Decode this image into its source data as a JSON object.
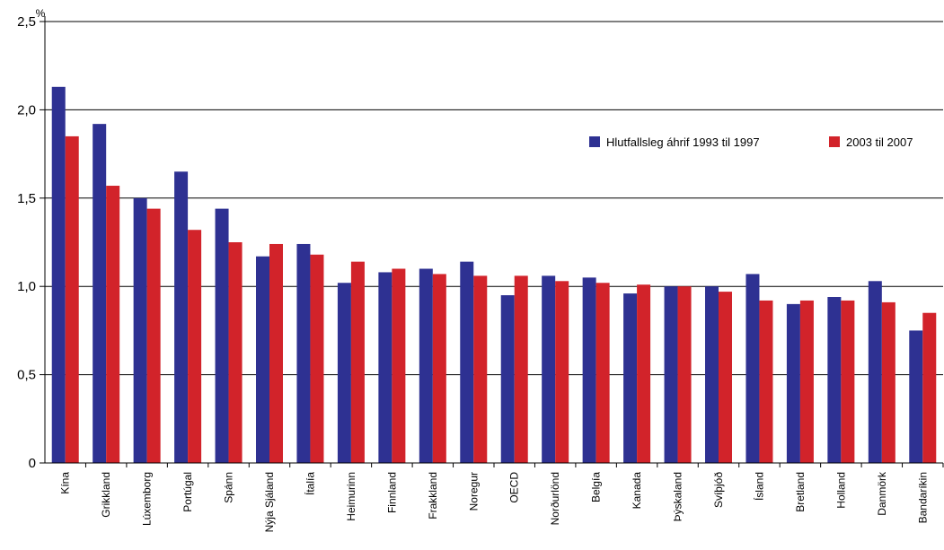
{
  "chart_data": {
    "type": "bar",
    "unit_label": "%",
    "ylim": [
      0,
      2.5
    ],
    "yticks": [
      "0",
      "0,5",
      "1,0",
      "1,5",
      "2,0",
      "2,5"
    ],
    "grid": true,
    "legend_position": "top-right",
    "categories": [
      "Kína",
      "Grikkland",
      "Lúxemborg",
      "Portúgal",
      "Spánn",
      "Nýja Sjáland",
      "Ítalía",
      "Heimurinn",
      "Finnland",
      "Frakkland",
      "Noregur",
      "OECD",
      "Norðurlönd",
      "Belgía",
      "Kanada",
      "Þýskaland",
      "Svíþjóð",
      "Ísland",
      "Bretland",
      "Holland",
      "Danmörk",
      "Bandaríkin"
    ],
    "series": [
      {
        "name": "Hlutfallsleg áhrif 1993 til 1997",
        "color": "#2e3192",
        "values": [
          2.13,
          1.92,
          1.5,
          1.65,
          1.44,
          1.17,
          1.24,
          1.02,
          1.08,
          1.1,
          1.14,
          0.95,
          1.06,
          1.05,
          0.96,
          1.0,
          1.0,
          1.07,
          0.9,
          0.94,
          1.03,
          0.75
        ]
      },
      {
        "name": "2003 til 2007",
        "color": "#d2232a",
        "values": [
          1.85,
          1.57,
          1.44,
          1.32,
          1.25,
          1.24,
          1.18,
          1.14,
          1.1,
          1.07,
          1.06,
          1.06,
          1.03,
          1.02,
          1.01,
          1.0,
          0.97,
          0.92,
          0.92,
          0.92,
          0.91,
          0.85
        ]
      }
    ]
  }
}
